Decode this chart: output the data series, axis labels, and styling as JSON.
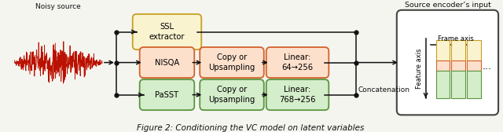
{
  "title": "Figure 2: Conditioning the VC model on latent variables",
  "noisy_source_label": "Noisy source",
  "source_encoder_label": "Source encoder’s input",
  "frame_axis_label": "Frame axis",
  "feature_axis_label": "Feature axis",
  "concatenation_label": "Concatenation",
  "ssl_fc": "#faf3d0",
  "ssl_ec": "#c8a020",
  "nisqa_fc": "#fde0cc",
  "nisqa_ec": "#d4622a",
  "passt_fc": "#d4edca",
  "passt_ec": "#5a9640",
  "waveform_color": "#bb1100",
  "bg_color": "#f5f5f0",
  "arrow_color": "#111111",
  "enc_fc": "#ffffff",
  "enc_ec": "#444444"
}
